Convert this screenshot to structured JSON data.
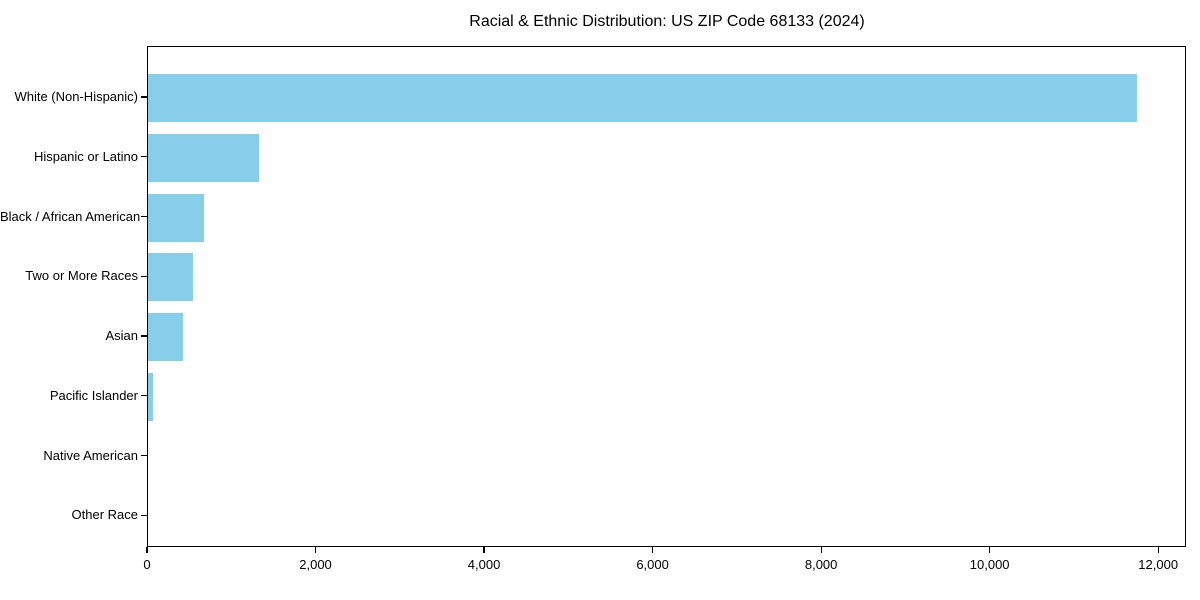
{
  "figure": {
    "background_color": "#ffffff",
    "text_color": "#000000",
    "axis_color": "#000000"
  },
  "chart_data": {
    "type": "bar",
    "orientation": "horizontal",
    "title": "Racial & Ethnic Distribution: US ZIP Code 68133 (2024)",
    "categories": [
      "White (Non-Hispanic)",
      "Hispanic or Latino",
      "Black / African American",
      "Two or More Races",
      "Asian",
      "Pacific Islander",
      "Native American",
      "Other Race"
    ],
    "values": [
      11740,
      1320,
      670,
      530,
      420,
      60,
      0,
      0
    ],
    "bar_color": "#87CEEB",
    "xlabel": "",
    "ylabel": "",
    "xlim": [
      0,
      12330
    ],
    "x_ticks": [
      0,
      2000,
      4000,
      6000,
      8000,
      10000,
      12000
    ],
    "x_tick_labels": [
      "0",
      "2,000",
      "4,000",
      "6,000",
      "8,000",
      "10,000",
      "12,000"
    ],
    "grid": false,
    "legend": null
  }
}
